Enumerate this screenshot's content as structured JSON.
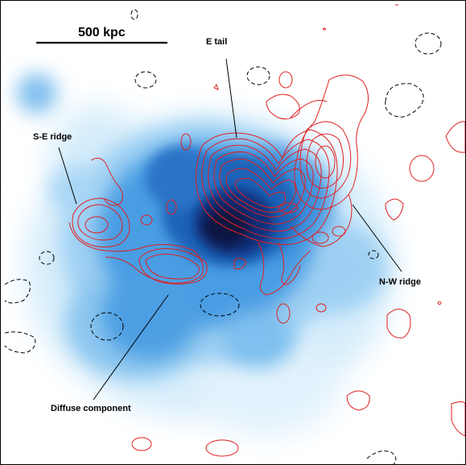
{
  "figure": {
    "scale_bar_label": "500 kpc",
    "labels": {
      "e_tail": "E tail",
      "se_ridge": "S-E ridge",
      "nw_ridge": "N-W ridge",
      "diffuse": "Diffuse component"
    },
    "colors": {
      "xray_dark": "#0a1640",
      "xray_mid": "#2f86d8",
      "xray_light": "#a9d8f6",
      "contour_positive": "#e02020",
      "contour_negative": "#000000"
    }
  }
}
